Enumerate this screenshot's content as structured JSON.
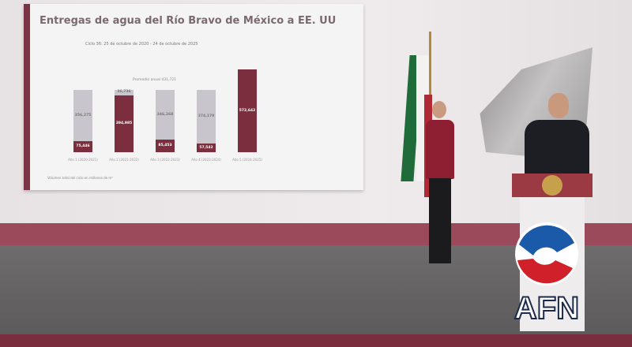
{
  "screen": {
    "title": "Entregas de agua del Río Bravo de México a EE. UU",
    "subtitle": "Ciclo 36: 25 de octubre de 2020 - 24 de octubre de 2025",
    "average_label": "Promedio anual 431,721",
    "footnote": "Volumen total del ciclo en millones de m³"
  },
  "chart_data": {
    "type": "bar",
    "title": "Entregas de agua del Río Bravo de México a EE. UU",
    "subtitle": "Ciclo 36: 25 de octubre de 2020 - 24 de octubre de 2025",
    "categories": [
      "Año 1 (2020-2021)",
      "Año 2 (2021-2022)",
      "Año 3 (2022-2023)",
      "Año 4 (2023-2024)",
      "Año 5 (2024-2025)"
    ],
    "series": [
      {
        "values": [
          75446,
          394985,
          85453,
          57542,
          572642
        ],
        "color": "#7b2e3e"
      },
      {
        "values": [
          356275,
          36736,
          346268,
          374179,
          0
        ],
        "color": "#c9c5cd"
      }
    ],
    "value_labels": [
      "75,446",
      "394,985",
      "85,453",
      "57,542",
      "572,642"
    ],
    "remaining_labels": [
      "356,275",
      "36,736",
      "346,268",
      "374,179",
      ""
    ]
  },
  "logo": {
    "text": "AFN"
  },
  "colors": {
    "accent": "#7b2e3e",
    "secondary": "#c9c5cd"
  }
}
